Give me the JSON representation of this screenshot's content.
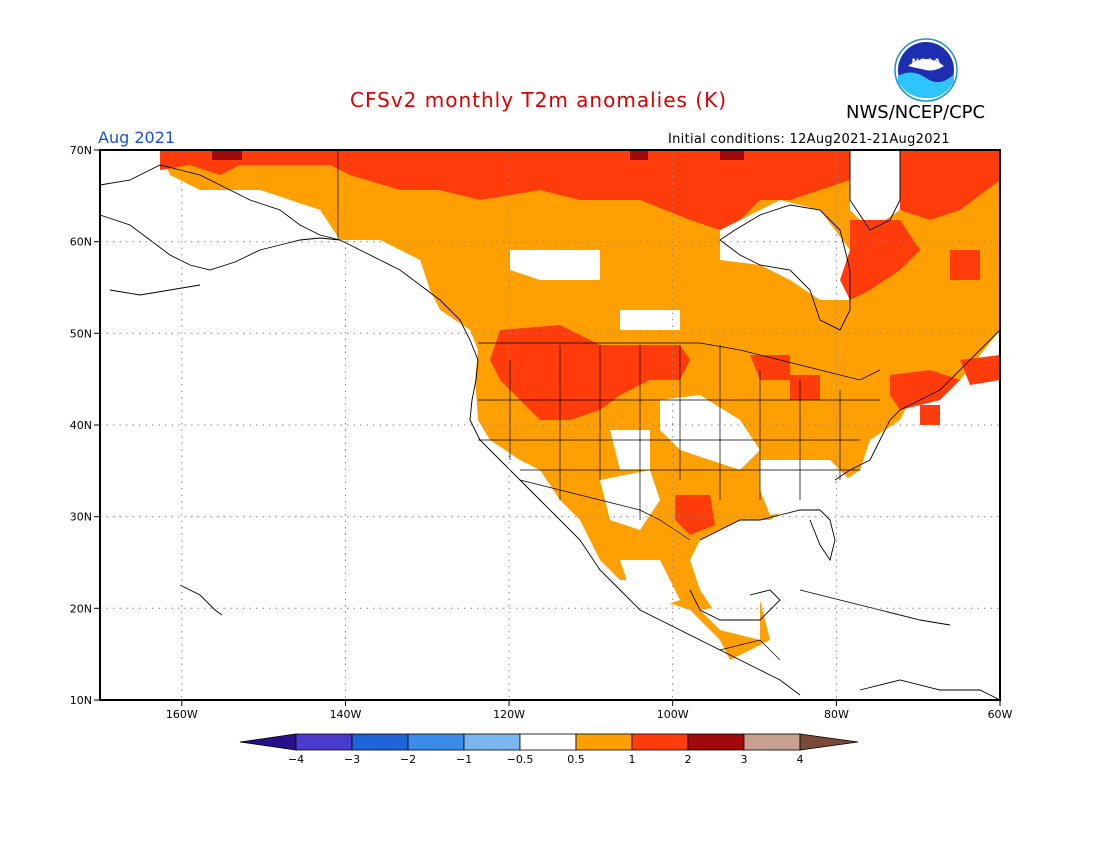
{
  "title": "CFSv2 monthly T2m anomalies (K)",
  "organization": "NWS/NCEP/CPC",
  "logo_text": "NOAA",
  "month": "Aug 2021",
  "initial_conditions": "Initial conditions: 12Aug2021-21Aug2021",
  "map": {
    "lat_range": [
      10,
      70
    ],
    "lon_range": [
      -171,
      -60
    ],
    "lat_ticks": [
      {
        "value": 70,
        "label": "70N"
      },
      {
        "value": 60,
        "label": "60N"
      },
      {
        "value": 50,
        "label": "50N"
      },
      {
        "value": 40,
        "label": "40N"
      },
      {
        "value": 30,
        "label": "30N"
      },
      {
        "value": 20,
        "label": "20N"
      },
      {
        "value": 10,
        "label": "10N"
      }
    ],
    "lon_ticks": [
      {
        "value": -160,
        "label": "160W"
      },
      {
        "value": -140,
        "label": "140W"
      },
      {
        "value": -120,
        "label": "120W"
      },
      {
        "value": -100,
        "label": "100W"
      },
      {
        "value": -80,
        "label": "80W"
      },
      {
        "value": -60,
        "label": "60W"
      }
    ],
    "grid": "dotted"
  },
  "colorbar": {
    "labels": [
      "−4",
      "−3",
      "−2",
      "−1",
      "−0.5",
      "0.5",
      "1",
      "2",
      "3",
      "4"
    ],
    "colors": [
      "#2a0f8c",
      "#4a3bcc",
      "#1f64d6",
      "#3a8ce8",
      "#7ab7f0",
      "#ffffff",
      "#ffa000",
      "#ff3c0a",
      "#a00a0a",
      "#c8a090",
      "#7a4a38"
    ]
  },
  "anomaly_colors": {
    "0.5-1": "#ffa000",
    "1-2": "#ff3c0a",
    "2-3": "#a00a0a"
  }
}
